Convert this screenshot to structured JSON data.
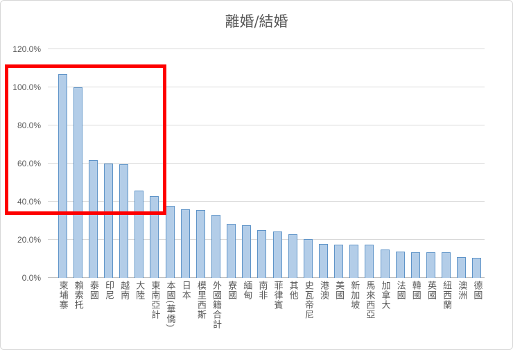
{
  "chart_data": {
    "type": "bar",
    "title": "離婚/結婚",
    "categories": [
      "柬埔寨",
      "賴索托",
      "泰國",
      "印尼",
      "越南",
      "大陸",
      "東南亞計",
      "本國(華僑)",
      "日本",
      "模里西斯",
      "外國籍合計",
      "寮國",
      "緬甸",
      "南非",
      "菲律賓",
      "其他",
      "史瓦帝尼",
      "港澳",
      "美國",
      "新加坡",
      "馬來西亞",
      "加拿大",
      "法國",
      "韓國",
      "英國",
      "紐西蘭",
      "澳洲",
      "德國"
    ],
    "values": [
      107,
      100,
      62,
      60,
      59.5,
      46,
      43,
      38,
      36,
      35.5,
      33,
      28.5,
      27.5,
      25,
      24.5,
      23,
      20.5,
      18,
      17.5,
      17.5,
      17.5,
      15,
      14,
      13.5,
      13.5,
      13.5,
      11,
      10.5
    ],
    "unit": "percent",
    "ylim": [
      0,
      120
    ],
    "y_ticks": [
      "0.0%",
      "20.0%",
      "40.0%",
      "60.0%",
      "80.0%",
      "100.0%",
      "120.0%"
    ],
    "grid": true,
    "legend": "none"
  },
  "annotation": {
    "shape": "rectangle",
    "color": "#FE0000",
    "covers_categories": [
      "柬埔寨",
      "賴索托",
      "泰國",
      "印尼",
      "越南",
      "大陸",
      "東南亞計"
    ]
  },
  "colors": {
    "bar_fill": "#B3CDE8",
    "bar_border": "#5F94C8",
    "gridline": "#D9D9D9",
    "axis_line": "#BFBFBF",
    "text": "#595959"
  }
}
